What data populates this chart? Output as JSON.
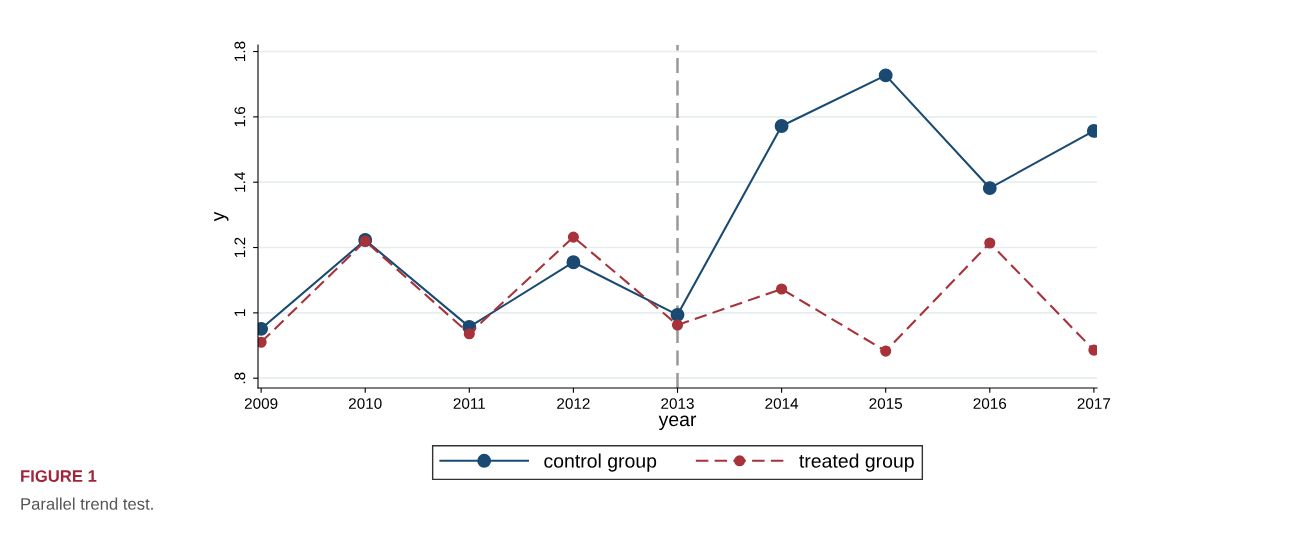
{
  "chart_data": {
    "type": "line",
    "xlabel": "year",
    "ylabel": "y",
    "x": [
      2009,
      2010,
      2011,
      2012,
      2013,
      2014,
      2015,
      2016,
      2017
    ],
    "series": [
      {
        "name": "control group",
        "color": "#1a4a72",
        "values": [
          0.951,
          1.223,
          0.957,
          1.155,
          0.994,
          1.572,
          1.727,
          1.382,
          1.557
        ],
        "line_style": "solid"
      },
      {
        "name": "treated group",
        "color": "#a8323a",
        "values": [
          0.91,
          1.22,
          0.936,
          1.232,
          0.963,
          1.073,
          0.883,
          1.214,
          0.886
        ],
        "line_style": "dashed"
      }
    ],
    "marker": "circle",
    "grid": "y",
    "legend": "bottom",
    "xlim": [
      2008.97,
      2017.03
    ],
    "xticks": [
      2009,
      2010,
      2011,
      2012,
      2013,
      2014,
      2015,
      2016,
      2017
    ],
    "ylim": [
      0.77,
      1.82
    ],
    "yticks": [
      {
        "value": 0.8,
        "label": ".8"
      },
      {
        "value": 1,
        "label": "1"
      },
      {
        "value": 1.2,
        "label": "1.2"
      },
      {
        "value": 1.4,
        "label": "1.4"
      },
      {
        "value": 1.6,
        "label": "1.6"
      },
      {
        "value": 1.8,
        "label": "1.8"
      }
    ],
    "ref_lines": [
      {
        "axis": "x",
        "value": 2013,
        "color": "#999999",
        "line_style": "dashed"
      }
    ],
    "annotations": [
      "FIGURE 1",
      "Parallel trend test."
    ]
  }
}
